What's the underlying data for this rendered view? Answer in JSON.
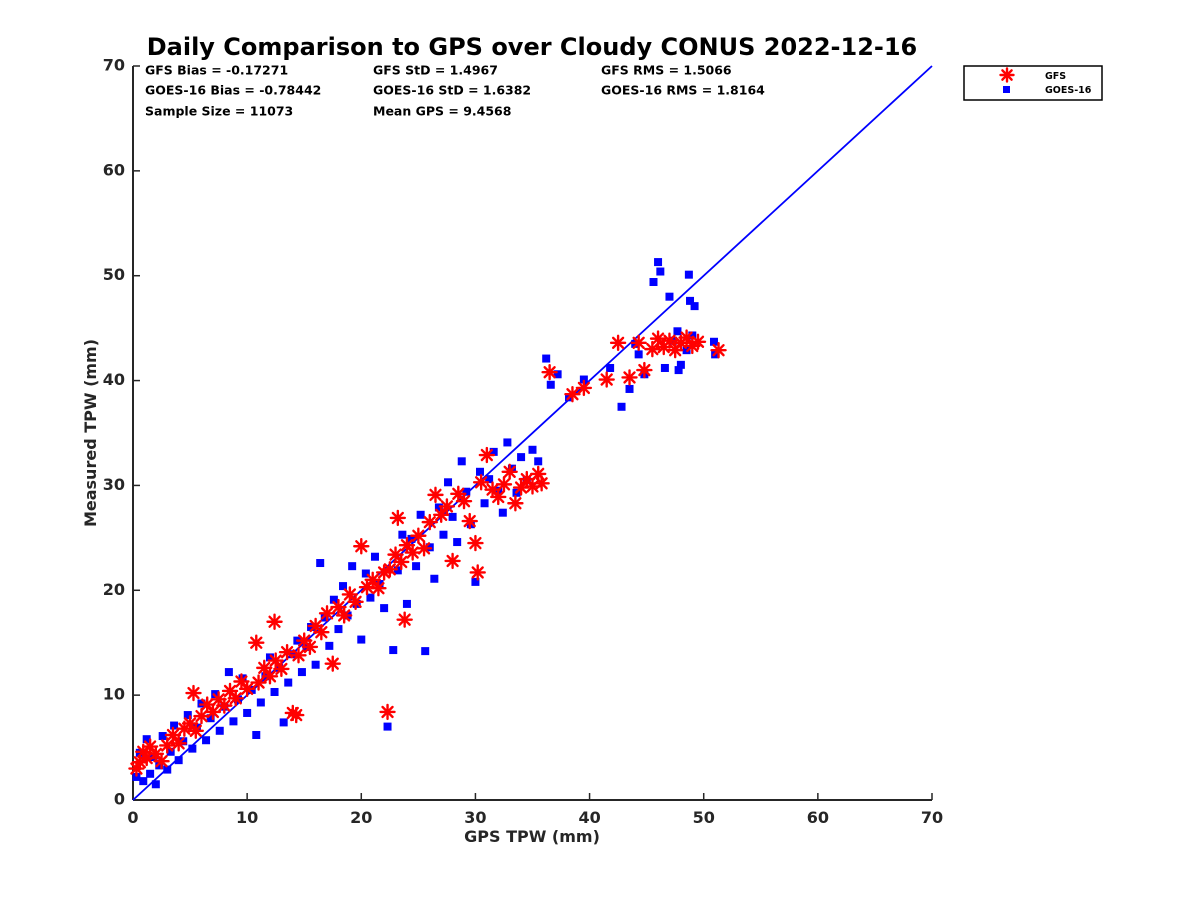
{
  "chart_data": {
    "type": "scatter",
    "title": "Daily Comparison to GPS over Cloudy CONUS 2022-12-16",
    "xlabel": "GPS TPW (mm)",
    "ylabel": "Measured TPW (mm)",
    "xlim": [
      0,
      70
    ],
    "ylim": [
      0,
      70
    ],
    "xticks": [
      "0",
      "10",
      "20",
      "30",
      "40",
      "50",
      "60",
      "70"
    ],
    "yticks": [
      "0",
      "10",
      "20",
      "30",
      "40",
      "50",
      "60",
      "70"
    ],
    "grid": false,
    "legend_position": "outside-top-right",
    "stats": [
      [
        "GFS Bias = -0.17271",
        "GFS StD = 1.4967",
        "GFS RMS = 1.5066"
      ],
      [
        "GOES-16 Bias = -0.78442",
        "GOES-16 StD = 1.6382",
        "GOES-16 RMS = 1.8164"
      ],
      [
        "Sample Size = 11073",
        "Mean GPS = 9.4568",
        ""
      ]
    ],
    "reference_line": {
      "x": [
        0,
        70
      ],
      "y": [
        0,
        70
      ],
      "color": "#0000ff"
    },
    "series": [
      {
        "name": "GFS",
        "marker": "asterisk",
        "color": "#ff0000",
        "points": [
          [
            0.3,
            3.0
          ],
          [
            0.6,
            3.6
          ],
          [
            0.9,
            4.6
          ],
          [
            1.2,
            4.0
          ],
          [
            1.5,
            5.1
          ],
          [
            2.0,
            4.4
          ],
          [
            2.5,
            3.7
          ],
          [
            3.0,
            5.2
          ],
          [
            3.5,
            6.2
          ],
          [
            4.0,
            5.4
          ],
          [
            4.5,
            6.8
          ],
          [
            5.0,
            7.3
          ],
          [
            5.5,
            6.6
          ],
          [
            6.0,
            8.0
          ],
          [
            5.3,
            10.2
          ],
          [
            6.5,
            9.1
          ],
          [
            7.0,
            8.4
          ],
          [
            7.5,
            9.6
          ],
          [
            8.0,
            9.0
          ],
          [
            8.5,
            10.4
          ],
          [
            9.0,
            9.7
          ],
          [
            9.5,
            11.3
          ],
          [
            10.0,
            10.6
          ],
          [
            10.8,
            15.0
          ],
          [
            11.0,
            11.2
          ],
          [
            11.5,
            12.6
          ],
          [
            12.0,
            11.8
          ],
          [
            12.4,
            17.0
          ],
          [
            12.5,
            13.3
          ],
          [
            13.0,
            12.5
          ],
          [
            13.5,
            14.1
          ],
          [
            14.0,
            8.3
          ],
          [
            14.3,
            8.1
          ],
          [
            14.5,
            13.8
          ],
          [
            15.0,
            15.2
          ],
          [
            15.5,
            14.6
          ],
          [
            16.0,
            16.6
          ],
          [
            16.5,
            16.0
          ],
          [
            17.0,
            17.8
          ],
          [
            17.5,
            13.0
          ],
          [
            18.0,
            18.4
          ],
          [
            18.5,
            17.6
          ],
          [
            19.0,
            19.6
          ],
          [
            19.5,
            18.9
          ],
          [
            20.0,
            24.2
          ],
          [
            20.5,
            20.3
          ],
          [
            21.0,
            21.0
          ],
          [
            21.5,
            20.2
          ],
          [
            22.0,
            21.7
          ],
          [
            22.3,
            8.4
          ],
          [
            22.5,
            22.0
          ],
          [
            23.0,
            23.4
          ],
          [
            23.2,
            26.9
          ],
          [
            23.5,
            22.7
          ],
          [
            23.8,
            17.2
          ],
          [
            24.0,
            24.3
          ],
          [
            24.5,
            23.6
          ],
          [
            25.0,
            25.2
          ],
          [
            25.5,
            24.0
          ],
          [
            26.0,
            26.5
          ],
          [
            26.5,
            29.1
          ],
          [
            27.0,
            27.2
          ],
          [
            27.5,
            28.0
          ],
          [
            28.0,
            22.8
          ],
          [
            28.5,
            29.2
          ],
          [
            29.0,
            28.5
          ],
          [
            29.5,
            26.6
          ],
          [
            30.0,
            24.5
          ],
          [
            30.2,
            21.7
          ],
          [
            30.5,
            30.3
          ],
          [
            31.0,
            32.9
          ],
          [
            31.5,
            29.6
          ],
          [
            32.0,
            28.9
          ],
          [
            32.5,
            30.1
          ],
          [
            33.0,
            31.3
          ],
          [
            33.5,
            28.3
          ],
          [
            34.0,
            29.8
          ],
          [
            34.5,
            30.6
          ],
          [
            35.0,
            29.9
          ],
          [
            35.5,
            31.1
          ],
          [
            35.8,
            30.2
          ],
          [
            36.5,
            40.8
          ],
          [
            38.5,
            38.7
          ],
          [
            39.5,
            39.3
          ],
          [
            41.5,
            40.1
          ],
          [
            42.5,
            43.6
          ],
          [
            43.5,
            40.3
          ],
          [
            44.3,
            43.6
          ],
          [
            44.8,
            41.0
          ],
          [
            45.5,
            43.0
          ],
          [
            46.0,
            44.0
          ],
          [
            46.5,
            43.2
          ],
          [
            47.0,
            43.8
          ],
          [
            47.5,
            42.9
          ],
          [
            48.0,
            43.6
          ],
          [
            48.5,
            44.1
          ],
          [
            49.0,
            43.3
          ],
          [
            49.5,
            43.7
          ],
          [
            51.3,
            42.9
          ]
        ]
      },
      {
        "name": "GOES-16",
        "marker": "square",
        "color": "#0000ff",
        "points": [
          [
            0.3,
            2.2
          ],
          [
            0.6,
            4.5
          ],
          [
            0.9,
            1.8
          ],
          [
            1.2,
            5.8
          ],
          [
            1.5,
            2.5
          ],
          [
            1.8,
            4.1
          ],
          [
            2.0,
            1.5
          ],
          [
            2.3,
            3.3
          ],
          [
            2.6,
            6.1
          ],
          [
            3.0,
            2.9
          ],
          [
            3.3,
            4.6
          ],
          [
            3.6,
            7.1
          ],
          [
            4.0,
            3.8
          ],
          [
            4.4,
            5.6
          ],
          [
            4.8,
            8.1
          ],
          [
            5.2,
            4.9
          ],
          [
            5.6,
            6.9
          ],
          [
            6.0,
            9.2
          ],
          [
            6.4,
            5.7
          ],
          [
            6.8,
            7.8
          ],
          [
            7.2,
            10.1
          ],
          [
            7.6,
            6.6
          ],
          [
            8.0,
            8.9
          ],
          [
            8.4,
            12.2
          ],
          [
            8.8,
            7.5
          ],
          [
            9.2,
            9.6
          ],
          [
            9.6,
            11.6
          ],
          [
            10.0,
            8.3
          ],
          [
            10.4,
            10.5
          ],
          [
            10.8,
            6.2
          ],
          [
            11.2,
            9.3
          ],
          [
            11.6,
            11.8
          ],
          [
            12.0,
            13.6
          ],
          [
            12.4,
            10.3
          ],
          [
            12.8,
            12.6
          ],
          [
            13.2,
            7.4
          ],
          [
            13.6,
            11.2
          ],
          [
            14.0,
            13.9
          ],
          [
            14.4,
            15.2
          ],
          [
            14.8,
            12.2
          ],
          [
            15.2,
            14.6
          ],
          [
            15.6,
            16.5
          ],
          [
            16.0,
            12.9
          ],
          [
            16.4,
            22.6
          ],
          [
            16.8,
            17.4
          ],
          [
            17.2,
            14.7
          ],
          [
            17.6,
            19.1
          ],
          [
            18.0,
            16.3
          ],
          [
            18.4,
            20.4
          ],
          [
            18.8,
            17.6
          ],
          [
            19.2,
            22.3
          ],
          [
            19.6,
            18.7
          ],
          [
            20.0,
            15.3
          ],
          [
            20.4,
            21.6
          ],
          [
            20.8,
            19.3
          ],
          [
            21.2,
            23.2
          ],
          [
            21.6,
            20.6
          ],
          [
            22.0,
            18.3
          ],
          [
            22.3,
            7.0
          ],
          [
            22.8,
            14.3
          ],
          [
            23.2,
            21.9
          ],
          [
            23.6,
            25.3
          ],
          [
            24.0,
            18.7
          ],
          [
            24.4,
            24.9
          ],
          [
            24.8,
            22.3
          ],
          [
            25.2,
            27.2
          ],
          [
            25.6,
            14.2
          ],
          [
            26.0,
            24.1
          ],
          [
            26.4,
            21.1
          ],
          [
            26.8,
            27.9
          ],
          [
            27.2,
            25.3
          ],
          [
            27.6,
            30.3
          ],
          [
            28.0,
            27.0
          ],
          [
            28.4,
            24.6
          ],
          [
            28.8,
            32.3
          ],
          [
            29.2,
            29.4
          ],
          [
            29.6,
            26.3
          ],
          [
            30.0,
            20.8
          ],
          [
            30.4,
            31.3
          ],
          [
            30.8,
            28.3
          ],
          [
            31.2,
            30.6
          ],
          [
            31.6,
            33.2
          ],
          [
            32.0,
            29.5
          ],
          [
            32.4,
            27.4
          ],
          [
            32.8,
            34.1
          ],
          [
            33.2,
            31.6
          ],
          [
            33.6,
            29.3
          ],
          [
            34.0,
            32.7
          ],
          [
            34.5,
            30.5
          ],
          [
            35.0,
            33.4
          ],
          [
            35.5,
            32.3
          ],
          [
            36.2,
            42.1
          ],
          [
            36.6,
            39.6
          ],
          [
            37.2,
            40.6
          ],
          [
            38.2,
            38.4
          ],
          [
            39.5,
            40.1
          ],
          [
            41.8,
            41.2
          ],
          [
            42.8,
            37.5
          ],
          [
            43.5,
            39.2
          ],
          [
            44.0,
            43.5
          ],
          [
            44.3,
            42.5
          ],
          [
            44.8,
            40.6
          ],
          [
            45.6,
            49.4
          ],
          [
            46.0,
            51.3
          ],
          [
            46.2,
            50.4
          ],
          [
            46.6,
            41.2
          ],
          [
            47.0,
            48.0
          ],
          [
            47.3,
            43.8
          ],
          [
            47.7,
            44.7
          ],
          [
            48.0,
            41.5
          ],
          [
            48.5,
            42.9
          ],
          [
            48.7,
            50.1
          ],
          [
            48.8,
            47.6
          ],
          [
            49.2,
            47.1
          ],
          [
            49.0,
            44.3
          ],
          [
            47.8,
            41.0
          ],
          [
            50.9,
            43.7
          ],
          [
            51.0,
            42.5
          ]
        ]
      }
    ]
  }
}
